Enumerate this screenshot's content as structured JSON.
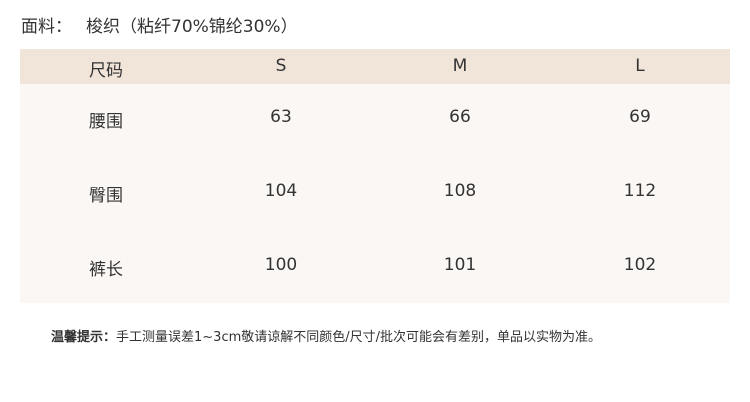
{
  "material": {
    "label": "面料：",
    "value": "梭织（粘纤70%锦纶30%）"
  },
  "table": {
    "headers": [
      "尺码",
      "S",
      "M",
      "L"
    ],
    "rows": [
      {
        "label": "腰围",
        "values": [
          "63",
          "66",
          "69"
        ]
      },
      {
        "label": "臀围",
        "values": [
          "104",
          "108",
          "112"
        ]
      },
      {
        "label": "裤长",
        "values": [
          "100",
          "101",
          "102"
        ]
      }
    ]
  },
  "tip": {
    "label": "温馨提示：",
    "text": "手工测量误差1~3cm敬请谅解不同颜色/尺寸/批次可能会有差别，单品以实物为准。"
  },
  "colors": {
    "header_bg": "#f1e4d9",
    "body_bg": "#fbf7f4"
  }
}
